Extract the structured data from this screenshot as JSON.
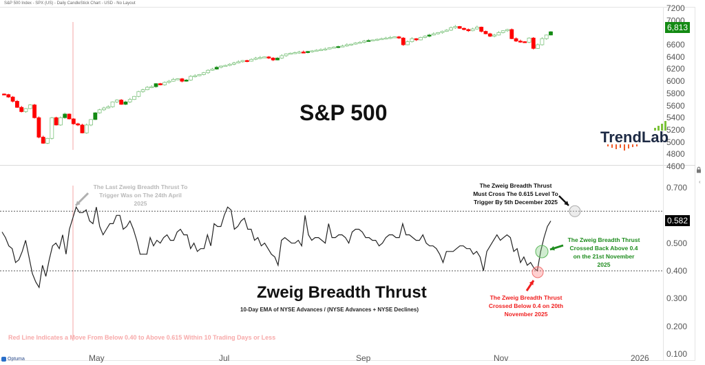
{
  "window": {
    "title": "S&P 500 Index - SPX (US) - Daily CandleStick Chart - USD - No Layout",
    "vendor": "Optuma"
  },
  "logo": {
    "text": "TrendLabs"
  },
  "colors": {
    "up_candle": "#7cc27c",
    "up_candle_fill": "#138a13",
    "down_candle": "#ff0000",
    "zbt_line": "#222222",
    "red_trigger_line": "#f4a6a6",
    "price_tag_bg": "#138a13",
    "zbt_tag_bg": "#000000",
    "green_annotation": "#1e8c1e",
    "red_annotation": "#f02020",
    "grey_annotation": "#b8b8b8"
  },
  "chart_data": [
    {
      "type": "candlestick",
      "title": "S&P 500",
      "xlabel": "",
      "ylabel": "",
      "ylim": [
        4600,
        7200
      ],
      "yticks": [
        4600,
        4800,
        5000,
        5200,
        5400,
        5600,
        5800,
        6000,
        6200,
        6400,
        6600,
        6800,
        7000,
        7200
      ],
      "last_price_label": "6,813",
      "x_ticks": [
        "May",
        "Jul",
        "Sep",
        "Nov",
        "2026"
      ],
      "approx_closes": [
        5780,
        5740,
        5670,
        5570,
        5500,
        5550,
        5610,
        5400,
        5080,
        4980,
        5060,
        5400,
        5280,
        5400,
        5460,
        5380,
        5300,
        5280,
        5150,
        5280,
        5370,
        5480,
        5530,
        5560,
        5580,
        5660,
        5690,
        5620,
        5660,
        5700,
        5750,
        5830,
        5860,
        5900,
        5910,
        5960,
        5940,
        5980,
        6000,
        6030,
        6040,
        6000,
        6020,
        6080,
        6090,
        6110,
        6140,
        6180,
        6200,
        6230,
        6250,
        6260,
        6280,
        6300,
        6320,
        6340,
        6330,
        6360,
        6380,
        6390,
        6400,
        6380,
        6350,
        6380,
        6420,
        6450,
        6460,
        6470,
        6480,
        6470,
        6490,
        6500,
        6510,
        6520,
        6530,
        6550,
        6560,
        6570,
        6580,
        6600,
        6610,
        6630,
        6640,
        6660,
        6670,
        6680,
        6690,
        6700,
        6710,
        6720,
        6730,
        6710,
        6600,
        6650,
        6700,
        6680,
        6720,
        6740,
        6760,
        6780,
        6800,
        6820,
        6840,
        6880,
        6900,
        6870,
        6850,
        6830,
        6860,
        6890,
        6820,
        6780,
        6740,
        6760,
        6800,
        6830,
        6850,
        6700,
        6660,
        6650,
        6640,
        6710,
        6540,
        6600,
        6700,
        6760,
        6813
      ],
      "annotations": [
        "Red vertical line at 24th April 2025 trigger"
      ]
    },
    {
      "type": "line",
      "title": "Zweig Breadth Thrust",
      "subtitle": "10-Day EMA of NYSE Advances / (NYSE Advances + NYSE Declines)",
      "xlabel": "",
      "ylabel": "",
      "ylim": [
        0.1,
        0.75
      ],
      "yticks": [
        0.1,
        0.2,
        0.3,
        0.4,
        0.5,
        0.6,
        0.7
      ],
      "ytick_labels": [
        "0.100",
        "0.200",
        "0.300",
        "0.400",
        "0.500",
        "0.600",
        "0.700"
      ],
      "last_value_label": "0.582",
      "reference_lines": [
        0.615,
        0.4
      ],
      "x_ticks": [
        "May",
        "Jul",
        "Sep",
        "Nov",
        "2026"
      ],
      "series": [
        {
          "name": "ZBT",
          "values": [
            0.54,
            0.52,
            0.49,
            0.48,
            0.43,
            0.44,
            0.47,
            0.51,
            0.45,
            0.39,
            0.36,
            0.34,
            0.42,
            0.38,
            0.44,
            0.49,
            0.5,
            0.48,
            0.53,
            0.46,
            0.55,
            0.59,
            0.63,
            0.61,
            0.61,
            0.62,
            0.58,
            0.57,
            0.63,
            0.56,
            0.53,
            0.55,
            0.57,
            0.57,
            0.6,
            0.6,
            0.55,
            0.56,
            0.58,
            0.55,
            0.51,
            0.46,
            0.46,
            0.46,
            0.52,
            0.49,
            0.51,
            0.5,
            0.52,
            0.53,
            0.51,
            0.51,
            0.54,
            0.55,
            0.53,
            0.53,
            0.48,
            0.5,
            0.47,
            0.48,
            0.48,
            0.53,
            0.49,
            0.57,
            0.56,
            0.56,
            0.6,
            0.63,
            0.62,
            0.55,
            0.56,
            0.58,
            0.59,
            0.55,
            0.55,
            0.51,
            0.52,
            0.49,
            0.5,
            0.48,
            0.46,
            0.45,
            0.42,
            0.51,
            0.52,
            0.51,
            0.5,
            0.5,
            0.51,
            0.49,
            0.6,
            0.53,
            0.51,
            0.52,
            0.52,
            0.51,
            0.5,
            0.57,
            0.52,
            0.52,
            0.53,
            0.53,
            0.52,
            0.5,
            0.54,
            0.55,
            0.55,
            0.54,
            0.52,
            0.52,
            0.51,
            0.51,
            0.49,
            0.5,
            0.52,
            0.53,
            0.53,
            0.52,
            0.52,
            0.57,
            0.53,
            0.53,
            0.52,
            0.51,
            0.51,
            0.53,
            0.5,
            0.49,
            0.49,
            0.48,
            0.46,
            0.43,
            0.47,
            0.47,
            0.47,
            0.48,
            0.49,
            0.49,
            0.48,
            0.48,
            0.46,
            0.47,
            0.45,
            0.4,
            0.47,
            0.49,
            0.51,
            0.53,
            0.51,
            0.52,
            0.53,
            0.52,
            0.47,
            0.48,
            0.43,
            0.45,
            0.42,
            0.43,
            0.41,
            0.4,
            0.47,
            0.52,
            0.56,
            0.58
          ]
        }
      ],
      "annotations": [
        "The Last Zweig Breadth Thrust To Trigger Was on The 24th April 2025",
        "The Zweig Breadth Thrust Must Cross The 0.615 Level To Trigger By 5th December 2025",
        "The Zweig Breadth Thrust Crossed Back Above 0.4 on the 21st November 2025",
        "The Zweig Breadth Thrust Crossed Below 0.4 on 20th November 2025",
        "Red Line Indicates a Move From Below 0.40 to Above 0.615 Within 10 Trading Days or Less"
      ]
    }
  ],
  "price_pane": {
    "title": "S&P 500",
    "last_price": "6,813",
    "y_labels": [
      "7200",
      "7000",
      "6800",
      "6600",
      "6400",
      "6200",
      "6000",
      "5800",
      "5600",
      "5400",
      "5200",
      "5000",
      "4800",
      "4600"
    ]
  },
  "zbt_pane": {
    "title": "Zweig Breadth Thrust",
    "subtitle": "10-Day EMA of NYSE Advances / (NYSE Advances + NYSE Declines)",
    "last_value": "0.582",
    "y_labels": [
      "0.700",
      "0.600",
      "0.500",
      "0.400",
      "0.300",
      "0.200",
      "0.100"
    ],
    "annotations": {
      "last_trigger": "The Last Zweig Breadth Thrust To Trigger Was on The 24th April 2025",
      "must_cross": "The Zweig Breadth Thrust Must Cross The 0.615 Level To Trigger By 5th December 2025",
      "crossed_above": "The Zweig Breadth Thrust Crossed Back Above 0.4 on the 21st November 2025",
      "crossed_below": "The Zweig Breadth Thrust Crossed Below 0.4 on 20th November 2025",
      "red_line_note": "Red Line Indicates a Move From Below 0.40 to Above 0.615 Within 10 Trading Days or Less"
    }
  },
  "x_axis": {
    "labels": [
      "May",
      "Jul",
      "Sep",
      "Nov",
      "2026"
    ]
  }
}
